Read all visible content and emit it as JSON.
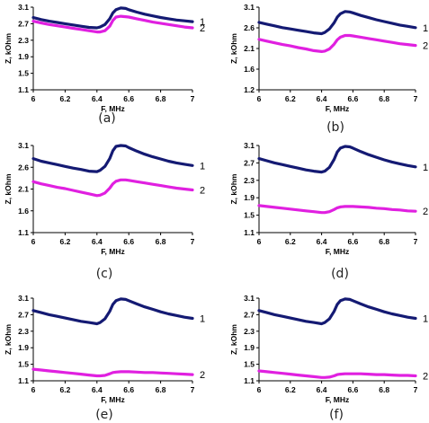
{
  "chart_data": [
    {
      "type": "line",
      "panel_label": "(a)",
      "xlabel": "F, MHz",
      "ylabel": "Z, kOhm",
      "xlim": [
        6,
        7
      ],
      "ylim": [
        1.1,
        3.1
      ],
      "xticks": [
        "6",
        "6.2",
        "6.4",
        "6.6",
        "6.8",
        "7"
      ],
      "yticks": [
        "1.1",
        "1.5",
        "1.9",
        "2.3",
        "2.7",
        "3.1"
      ],
      "grid": false,
      "x": [
        6,
        6.05,
        6.1,
        6.15,
        6.2,
        6.25,
        6.3,
        6.35,
        6.4,
        6.42,
        6.45,
        6.48,
        6.5,
        6.52,
        6.55,
        6.58,
        6.6,
        6.65,
        6.7,
        6.75,
        6.8,
        6.85,
        6.9,
        6.95,
        7
      ],
      "series": [
        {
          "name": "1",
          "color": "#141a73",
          "values": [
            2.85,
            2.8,
            2.76,
            2.73,
            2.7,
            2.67,
            2.64,
            2.61,
            2.6,
            2.62,
            2.68,
            2.82,
            2.96,
            3.04,
            3.08,
            3.07,
            3.04,
            2.98,
            2.93,
            2.89,
            2.85,
            2.82,
            2.79,
            2.77,
            2.75
          ]
        },
        {
          "name": "2",
          "color": "#e020e0",
          "values": [
            2.76,
            2.72,
            2.68,
            2.65,
            2.62,
            2.59,
            2.56,
            2.53,
            2.5,
            2.5,
            2.53,
            2.64,
            2.78,
            2.86,
            2.88,
            2.87,
            2.86,
            2.82,
            2.78,
            2.74,
            2.71,
            2.68,
            2.65,
            2.62,
            2.6
          ]
        }
      ]
    },
    {
      "type": "line",
      "panel_label": "(b)",
      "xlabel": "F, MHz",
      "ylabel": "Z, kOhm",
      "xlim": [
        6,
        7
      ],
      "ylim": [
        1.2,
        3.1
      ],
      "xticks": [
        "6",
        "6.2",
        "6.4",
        "6.6",
        "6.8",
        "7"
      ],
      "yticks": [
        "1.2",
        "1.6",
        "2.1",
        "2.6",
        "3.1"
      ],
      "grid": false,
      "x": [
        6,
        6.05,
        6.1,
        6.15,
        6.2,
        6.25,
        6.3,
        6.35,
        6.4,
        6.42,
        6.45,
        6.48,
        6.5,
        6.52,
        6.55,
        6.58,
        6.6,
        6.65,
        6.7,
        6.75,
        6.8,
        6.85,
        6.9,
        6.95,
        7
      ],
      "series": [
        {
          "name": "1",
          "color": "#141a73",
          "values": [
            2.75,
            2.71,
            2.67,
            2.63,
            2.6,
            2.57,
            2.54,
            2.51,
            2.49,
            2.52,
            2.6,
            2.74,
            2.87,
            2.95,
            3.0,
            2.99,
            2.97,
            2.91,
            2.86,
            2.81,
            2.77,
            2.73,
            2.69,
            2.66,
            2.63
          ]
        },
        {
          "name": "2",
          "color": "#e020e0",
          "values": [
            2.36,
            2.32,
            2.28,
            2.24,
            2.21,
            2.17,
            2.14,
            2.1,
            2.08,
            2.09,
            2.14,
            2.25,
            2.35,
            2.41,
            2.45,
            2.45,
            2.44,
            2.41,
            2.38,
            2.35,
            2.32,
            2.29,
            2.26,
            2.24,
            2.22
          ]
        }
      ]
    },
    {
      "type": "line",
      "panel_label": "(c)",
      "xlabel": "F, MHz",
      "ylabel": "Z, kOhm",
      "xlim": [
        6,
        7
      ],
      "ylim": [
        1.1,
        3.1
      ],
      "xticks": [
        "6",
        "6.2",
        "6.4",
        "6.6",
        "6.8",
        "7"
      ],
      "yticks": [
        "1.1",
        "1.6",
        "2.1",
        "2.6",
        "3.1"
      ],
      "grid": false,
      "x": [
        6,
        6.05,
        6.1,
        6.15,
        6.2,
        6.25,
        6.3,
        6.35,
        6.4,
        6.42,
        6.45,
        6.48,
        6.5,
        6.52,
        6.55,
        6.58,
        6.6,
        6.65,
        6.7,
        6.75,
        6.8,
        6.85,
        6.9,
        6.95,
        7
      ],
      "series": [
        {
          "name": "1",
          "color": "#141a73",
          "values": [
            2.8,
            2.74,
            2.7,
            2.66,
            2.62,
            2.58,
            2.55,
            2.51,
            2.5,
            2.53,
            2.62,
            2.8,
            2.98,
            3.08,
            3.1,
            3.09,
            3.05,
            2.97,
            2.9,
            2.84,
            2.79,
            2.74,
            2.7,
            2.67,
            2.64
          ]
        },
        {
          "name": "2",
          "color": "#e020e0",
          "values": [
            2.27,
            2.22,
            2.18,
            2.14,
            2.11,
            2.07,
            2.03,
            1.99,
            1.95,
            1.96,
            2.01,
            2.12,
            2.22,
            2.28,
            2.31,
            2.31,
            2.3,
            2.27,
            2.24,
            2.21,
            2.18,
            2.15,
            2.12,
            2.1,
            2.08
          ]
        }
      ]
    },
    {
      "type": "line",
      "panel_label": "(d)",
      "xlabel": "F, MHz",
      "ylabel": "Z, kOhm",
      "xlim": [
        6,
        7
      ],
      "ylim": [
        1.1,
        3.1
      ],
      "xticks": [
        "6",
        "6.2",
        "6.4",
        "6.6",
        "6.8",
        "7"
      ],
      "yticks": [
        "1.1",
        "1.5",
        "1.9",
        "2.3",
        "2.7",
        "3.1"
      ],
      "grid": false,
      "x": [
        6,
        6.05,
        6.1,
        6.15,
        6.2,
        6.25,
        6.3,
        6.35,
        6.4,
        6.42,
        6.45,
        6.48,
        6.5,
        6.52,
        6.55,
        6.58,
        6.6,
        6.65,
        6.7,
        6.75,
        6.8,
        6.85,
        6.9,
        6.95,
        7
      ],
      "series": [
        {
          "name": "1",
          "color": "#141a73",
          "values": [
            2.8,
            2.75,
            2.7,
            2.66,
            2.62,
            2.58,
            2.54,
            2.51,
            2.49,
            2.51,
            2.6,
            2.78,
            2.95,
            3.04,
            3.08,
            3.07,
            3.04,
            2.96,
            2.89,
            2.83,
            2.77,
            2.72,
            2.68,
            2.64,
            2.61
          ]
        },
        {
          "name": "2",
          "color": "#e020e0",
          "values": [
            1.72,
            1.7,
            1.68,
            1.66,
            1.64,
            1.62,
            1.6,
            1.58,
            1.56,
            1.56,
            1.58,
            1.63,
            1.67,
            1.69,
            1.7,
            1.7,
            1.7,
            1.69,
            1.68,
            1.66,
            1.65,
            1.63,
            1.62,
            1.6,
            1.59
          ]
        }
      ]
    },
    {
      "type": "line",
      "panel_label": "(e)",
      "xlabel": "F, MHz",
      "ylabel": "Z, kOhm",
      "xlim": [
        6,
        7
      ],
      "ylim": [
        1.1,
        3.1
      ],
      "xticks": [
        "6",
        "6.2",
        "6.4",
        "6.6",
        "6.8",
        "7"
      ],
      "yticks": [
        "1.1",
        "1.5",
        "1.9",
        "2.3",
        "2.7",
        "3.1"
      ],
      "grid": false,
      "x": [
        6,
        6.05,
        6.1,
        6.15,
        6.2,
        6.25,
        6.3,
        6.35,
        6.4,
        6.42,
        6.45,
        6.48,
        6.5,
        6.52,
        6.55,
        6.58,
        6.6,
        6.65,
        6.7,
        6.75,
        6.8,
        6.85,
        6.9,
        6.95,
        7
      ],
      "series": [
        {
          "name": "1",
          "color": "#141a73",
          "values": [
            2.8,
            2.75,
            2.7,
            2.66,
            2.62,
            2.58,
            2.54,
            2.51,
            2.48,
            2.51,
            2.6,
            2.78,
            2.95,
            3.04,
            3.08,
            3.07,
            3.04,
            2.96,
            2.89,
            2.83,
            2.77,
            2.72,
            2.68,
            2.64,
            2.61
          ]
        },
        {
          "name": "2",
          "color": "#e020e0",
          "values": [
            1.38,
            1.36,
            1.34,
            1.32,
            1.3,
            1.28,
            1.26,
            1.24,
            1.22,
            1.22,
            1.23,
            1.27,
            1.3,
            1.31,
            1.32,
            1.32,
            1.32,
            1.31,
            1.3,
            1.3,
            1.29,
            1.28,
            1.27,
            1.26,
            1.25
          ]
        }
      ]
    },
    {
      "type": "line",
      "panel_label": "(f)",
      "xlabel": "F, MHz",
      "ylabel": "Z, kOhm",
      "xlim": [
        6,
        7
      ],
      "ylim": [
        1.1,
        3.1
      ],
      "xticks": [
        "6",
        "6.2",
        "6.4",
        "6.6",
        "6.8",
        "7"
      ],
      "yticks": [
        "1.1",
        "1.5",
        "1.9",
        "2.3",
        "2.7",
        "3.1"
      ],
      "grid": false,
      "x": [
        6,
        6.05,
        6.1,
        6.15,
        6.2,
        6.25,
        6.3,
        6.35,
        6.4,
        6.42,
        6.45,
        6.48,
        6.5,
        6.52,
        6.55,
        6.58,
        6.6,
        6.65,
        6.7,
        6.75,
        6.8,
        6.85,
        6.9,
        6.95,
        7
      ],
      "series": [
        {
          "name": "1",
          "color": "#141a73",
          "values": [
            2.8,
            2.75,
            2.7,
            2.66,
            2.62,
            2.58,
            2.54,
            2.51,
            2.48,
            2.51,
            2.6,
            2.78,
            2.95,
            3.04,
            3.08,
            3.07,
            3.04,
            2.96,
            2.89,
            2.83,
            2.77,
            2.72,
            2.68,
            2.64,
            2.61
          ]
        },
        {
          "name": "2",
          "color": "#e020e0",
          "values": [
            1.34,
            1.32,
            1.3,
            1.28,
            1.26,
            1.24,
            1.22,
            1.2,
            1.18,
            1.18,
            1.19,
            1.22,
            1.25,
            1.26,
            1.27,
            1.27,
            1.27,
            1.27,
            1.26,
            1.25,
            1.25,
            1.24,
            1.23,
            1.23,
            1.22
          ]
        }
      ]
    }
  ]
}
